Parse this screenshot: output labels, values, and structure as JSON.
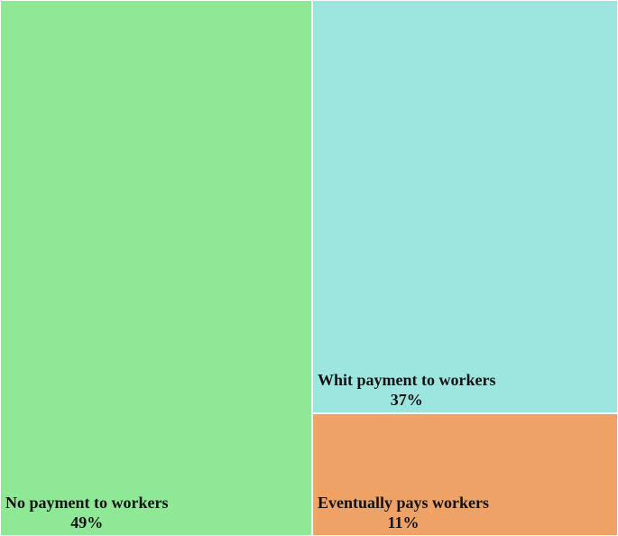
{
  "chart_data": {
    "type": "treemap",
    "title": "",
    "items": [
      {
        "label": "No payment to workers",
        "value": 49,
        "value_label": "49%",
        "color": "#8ee896"
      },
      {
        "label": "Whit payment to workers",
        "value": 37,
        "value_label": "37%",
        "color": "#9de6e0"
      },
      {
        "label": "Eventually pays workers",
        "value": 11,
        "value_label": "11%",
        "color": "#eea266"
      }
    ]
  }
}
